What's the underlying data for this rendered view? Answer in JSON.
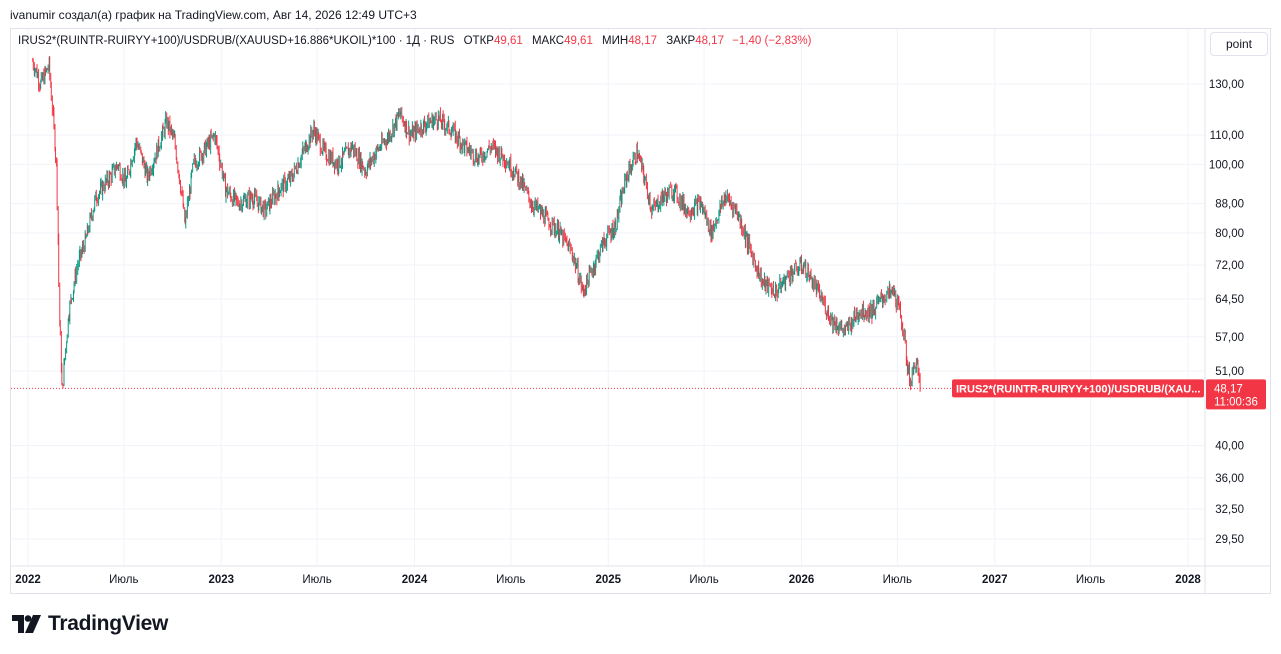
{
  "header": {
    "caption": "ivanumir создал(а) график на TradingView.com, Авг 14, 2026 12:49 UTC+3"
  },
  "legend": {
    "symbol": "IRUS2*(RUINTR-RUIRYY+100)/USDRUB/(XAUUSD+16.886*UKOIL)*100 · 1Д · RUS",
    "open_label": "ОТКР",
    "open_value": "49,61",
    "high_label": "МАКС",
    "high_value": "49,61",
    "low_label": "МИН",
    "low_value": "48,17",
    "close_label": "ЗАКР",
    "close_value": "48,17",
    "change": "−1,40 (−2,83%)"
  },
  "scale_button": {
    "label": "point"
  },
  "price_tag": {
    "symbol_label": "IRUS2*(RUINTR-RUIRYY+100)/USDRUB/(XAU...",
    "price": "48,17",
    "countdown": "11:00:36"
  },
  "brand": {
    "name": "TradingView"
  },
  "colors": {
    "up": "#089981",
    "down": "#f23645",
    "grid": "#f0f3fa",
    "text": "#131722"
  },
  "chart_data": {
    "type": "line",
    "style": "candlestick",
    "scale": "log",
    "ylim": [
      27,
      150
    ],
    "grid": true,
    "yticks": [
      {
        "value": 130.0,
        "label": "130,00"
      },
      {
        "value": 110.0,
        "label": "110,00"
      },
      {
        "value": 100.0,
        "label": "100,00"
      },
      {
        "value": 88.0,
        "label": "88,00"
      },
      {
        "value": 80.0,
        "label": "80,00"
      },
      {
        "value": 72.0,
        "label": "72,00"
      },
      {
        "value": 64.5,
        "label": "64,50"
      },
      {
        "value": 57.0,
        "label": "57,00"
      },
      {
        "value": 51.0,
        "label": "51,00"
      },
      {
        "value": 40.0,
        "label": "40,00"
      },
      {
        "value": 36.0,
        "label": "36,00"
      },
      {
        "value": 32.5,
        "label": "32,50"
      },
      {
        "value": 29.5,
        "label": "29,50"
      }
    ],
    "xticks": [
      {
        "date": "2022-01-01",
        "label": "2022",
        "bold": true
      },
      {
        "date": "2022-07-01",
        "label": "Июль",
        "bold": false
      },
      {
        "date": "2023-01-01",
        "label": "2023",
        "bold": true
      },
      {
        "date": "2023-07-01",
        "label": "Июль",
        "bold": false
      },
      {
        "date": "2024-01-01",
        "label": "2024",
        "bold": true
      },
      {
        "date": "2024-07-01",
        "label": "Июль",
        "bold": false
      },
      {
        "date": "2025-01-01",
        "label": "2025",
        "bold": true
      },
      {
        "date": "2025-07-01",
        "label": "Июль",
        "bold": false
      },
      {
        "date": "2026-01-01",
        "label": "2026",
        "bold": true
      },
      {
        "date": "2026-07-01",
        "label": "Июль",
        "bold": false
      },
      {
        "date": "2027-01-01",
        "label": "2027",
        "bold": true
      },
      {
        "date": "2027-07-01",
        "label": "Июль",
        "bold": false
      },
      {
        "date": "2028-01-01",
        "label": "2028",
        "bold": true
      }
    ],
    "last_price": 48.17,
    "series": [
      {
        "points": [
          [
            "2022-01-10",
            140
          ],
          [
            "2022-01-25",
            130
          ],
          [
            "2022-02-10",
            138
          ],
          [
            "2022-02-24",
            100
          ],
          [
            "2022-03-02",
            60
          ],
          [
            "2022-03-07",
            48
          ],
          [
            "2022-03-20",
            62
          ],
          [
            "2022-04-05",
            72
          ],
          [
            "2022-04-20",
            78
          ],
          [
            "2022-05-10",
            90
          ],
          [
            "2022-06-01",
            95
          ],
          [
            "2022-06-20",
            100
          ],
          [
            "2022-07-05",
            94
          ],
          [
            "2022-07-25",
            108
          ],
          [
            "2022-08-15",
            96
          ],
          [
            "2022-09-01",
            104
          ],
          [
            "2022-09-20",
            115
          ],
          [
            "2022-10-05",
            108
          ],
          [
            "2022-10-25",
            82
          ],
          [
            "2022-11-10",
            100
          ],
          [
            "2022-12-01",
            105
          ],
          [
            "2022-12-20",
            110
          ],
          [
            "2023-01-10",
            92
          ],
          [
            "2023-02-01",
            88
          ],
          [
            "2023-03-01",
            90
          ],
          [
            "2023-03-25",
            86
          ],
          [
            "2023-04-20",
            92
          ],
          [
            "2023-05-15",
            96
          ],
          [
            "2023-06-10",
            106
          ],
          [
            "2023-06-25",
            112
          ],
          [
            "2023-07-15",
            104
          ],
          [
            "2023-08-10",
            100
          ],
          [
            "2023-09-05",
            106
          ],
          [
            "2023-10-01",
            98
          ],
          [
            "2023-10-20",
            104
          ],
          [
            "2023-11-15",
            110
          ],
          [
            "2023-12-05",
            118
          ],
          [
            "2023-12-25",
            110
          ],
          [
            "2024-01-20",
            114
          ],
          [
            "2024-02-15",
            116
          ],
          [
            "2024-03-10",
            112
          ],
          [
            "2024-04-05",
            106
          ],
          [
            "2024-05-01",
            102
          ],
          [
            "2024-05-25",
            106
          ],
          [
            "2024-06-20",
            102
          ],
          [
            "2024-07-15",
            96
          ],
          [
            "2024-08-10",
            88
          ],
          [
            "2024-09-05",
            84
          ],
          [
            "2024-10-01",
            80
          ],
          [
            "2024-10-25",
            75
          ],
          [
            "2024-11-15",
            66
          ],
          [
            "2024-12-05",
            72
          ],
          [
            "2024-12-25",
            78
          ],
          [
            "2025-01-15",
            82
          ],
          [
            "2025-02-05",
            96
          ],
          [
            "2025-02-25",
            104
          ],
          [
            "2025-03-10",
            96
          ],
          [
            "2025-03-25",
            86
          ],
          [
            "2025-04-15",
            90
          ],
          [
            "2025-05-05",
            92
          ],
          [
            "2025-05-30",
            86
          ],
          [
            "2025-06-25",
            88
          ],
          [
            "2025-07-15",
            80
          ],
          [
            "2025-08-10",
            90
          ],
          [
            "2025-09-01",
            86
          ],
          [
            "2025-09-25",
            76
          ],
          [
            "2025-10-20",
            68
          ],
          [
            "2025-11-15",
            66
          ],
          [
            "2025-12-10",
            70
          ],
          [
            "2026-01-05",
            72
          ],
          [
            "2026-02-01",
            66
          ],
          [
            "2026-03-01",
            60
          ],
          [
            "2026-03-25",
            58
          ],
          [
            "2026-04-20",
            62
          ],
          [
            "2026-05-15",
            62
          ],
          [
            "2026-06-05",
            65
          ],
          [
            "2026-06-25",
            66
          ],
          [
            "2026-07-10",
            60
          ],
          [
            "2026-07-20",
            52
          ],
          [
            "2026-07-28",
            49
          ],
          [
            "2026-08-05",
            53
          ],
          [
            "2026-08-14",
            48.17
          ]
        ]
      }
    ]
  }
}
